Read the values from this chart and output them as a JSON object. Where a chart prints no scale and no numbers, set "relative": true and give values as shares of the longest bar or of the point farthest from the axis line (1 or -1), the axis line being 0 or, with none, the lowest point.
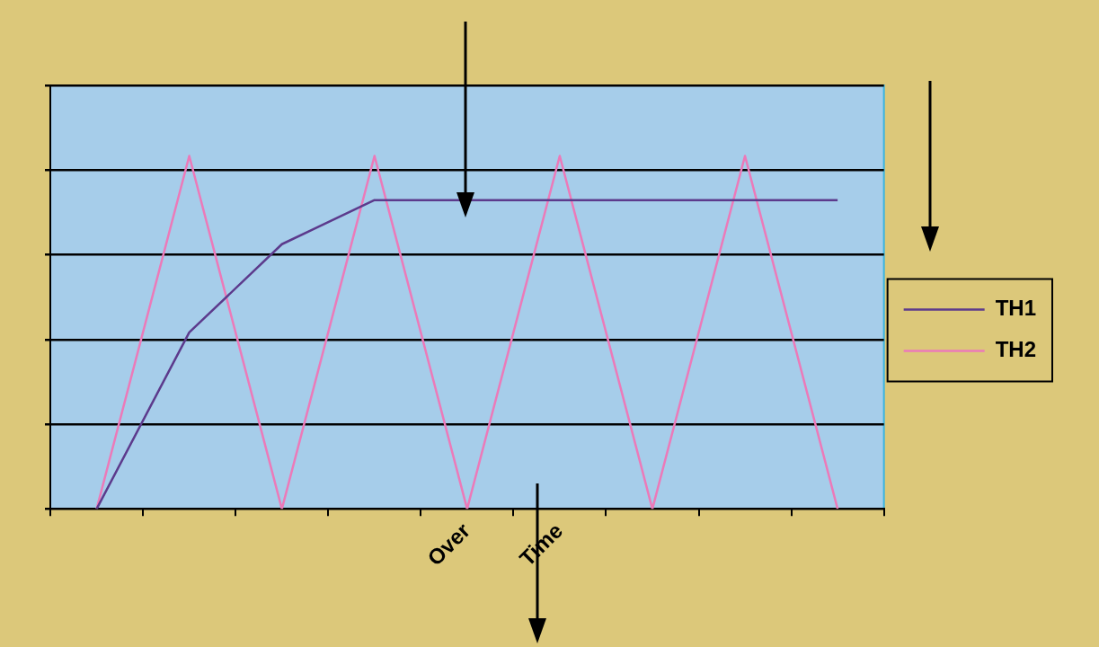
{
  "chart_data": {
    "type": "line",
    "relative": true,
    "categories": [
      null,
      null,
      null,
      null,
      "Over",
      "Time",
      null,
      null,
      null
    ],
    "series": [
      {
        "name": "TH1",
        "color": "#5c3a8c",
        "values": [
          0,
          0.5,
          0.75,
          0.875,
          0.875,
          0.875,
          0.875,
          0.875,
          0.875
        ]
      },
      {
        "name": "TH2",
        "color": "#ec7ab9",
        "values": [
          0,
          1,
          0,
          1,
          0,
          1,
          0,
          1,
          0
        ]
      }
    ],
    "grid": "y",
    "legend": "right",
    "tick_labels": "x",
    "marker": "none",
    "line_style": "solid"
  }
}
